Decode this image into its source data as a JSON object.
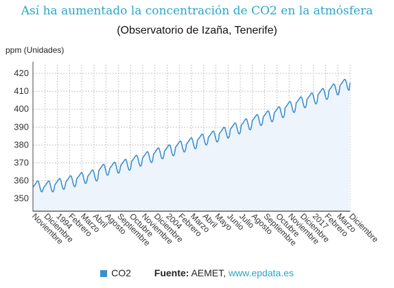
{
  "header": {
    "title": "Así ha aumentado la concentración de CO2 en la atmósfera",
    "subtitle": "(Observatorio de Izaña, Tenerife)"
  },
  "footer": {
    "source_label": "Fuente:",
    "source_name": "AEMET,",
    "source_link": "www.epdata.es"
  },
  "colors": {
    "line": "#3a8fd0",
    "fill": "#eef4fb",
    "title": "#2aa6c8",
    "grid": "#c4c4c4"
  },
  "chart_data": {
    "type": "area",
    "title": "Así ha aumentado la concentración de CO2 en la atmósfera",
    "subtitle": "(Observatorio de Izaña, Tenerife)",
    "ylabel": "ppm (Unidades)",
    "ylim": [
      343,
      425
    ],
    "yticks": [
      350,
      360,
      370,
      380,
      390,
      400,
      410,
      420
    ],
    "grid": true,
    "legend_position": "bottom",
    "x_start": "1991-11",
    "x_end": "2019-12",
    "xtick_labels": [
      "Noviembre",
      "Diciembre",
      "1994",
      "Febrero",
      "Marzo",
      "Abril",
      "Agosto",
      "Septiembre",
      "Octubre",
      "Noviembre",
      "Diciembre",
      "2004",
      "Febrero",
      "Marzo",
      "Abril",
      "Mayo",
      "Junio",
      "Julio",
      "Agosto",
      "Septiembre",
      "Octubre",
      "Noviembre",
      "Diciembre",
      "2017",
      "Febrero",
      "Marzo",
      "Diciembre"
    ],
    "series": [
      {
        "name": "CO2",
        "color": "#3a8fd0",
        "values": [
          356.4,
          357.1,
          357.7,
          358.5,
          359.3,
          359.9,
          359.6,
          357.9,
          355.6,
          354.0,
          353.8,
          355.1,
          356.4,
          357.1,
          357.7,
          358.5,
          359.3,
          359.9,
          359.6,
          357.9,
          355.6,
          354.0,
          353.8,
          355.1,
          357.8,
          358.5,
          359.1,
          359.9,
          360.7,
          361.3,
          361.0,
          359.3,
          357.0,
          355.4,
          355.2,
          356.5,
          359.3,
          360.0,
          360.6,
          361.4,
          362.2,
          362.8,
          362.5,
          360.8,
          358.5,
          356.9,
          356.7,
          358.0,
          361.1,
          361.8,
          362.4,
          363.2,
          364.0,
          364.6,
          364.3,
          362.6,
          360.3,
          358.7,
          358.5,
          359.8,
          362.5,
          363.2,
          363.8,
          364.6,
          365.4,
          366.0,
          365.7,
          364.0,
          361.7,
          360.1,
          359.9,
          361.2,
          365.7,
          366.4,
          367.0,
          367.8,
          368.6,
          369.2,
          368.9,
          367.2,
          364.9,
          363.3,
          363.1,
          364.4,
          366.9,
          367.6,
          368.2,
          369.0,
          369.8,
          370.4,
          370.1,
          368.4,
          366.1,
          364.5,
          364.3,
          365.6,
          368.5,
          369.2,
          369.8,
          370.6,
          371.4,
          372.0,
          371.7,
          370.0,
          367.7,
          366.1,
          365.9,
          367.2,
          370.8,
          371.5,
          372.1,
          372.9,
          373.7,
          374.3,
          374.0,
          372.3,
          370.0,
          368.4,
          368.2,
          369.5,
          372.8,
          373.5,
          374.1,
          374.9,
          375.7,
          376.3,
          376.0,
          374.3,
          372.0,
          370.4,
          370.2,
          371.5,
          374.9,
          375.6,
          376.2,
          377.0,
          377.8,
          378.4,
          378.1,
          376.4,
          374.1,
          372.5,
          372.3,
          373.6,
          376.6,
          377.3,
          377.9,
          378.7,
          379.5,
          380.1,
          379.8,
          378.1,
          375.8,
          374.2,
          374.0,
          375.3,
          378.7,
          379.4,
          380.0,
          380.8,
          381.6,
          382.2,
          381.9,
          380.2,
          377.9,
          376.3,
          376.1,
          377.4,
          380.5,
          381.2,
          381.8,
          382.6,
          383.4,
          384.0,
          383.7,
          382.0,
          379.7,
          378.1,
          377.9,
          379.2,
          382.6,
          383.3,
          383.9,
          384.7,
          385.5,
          386.1,
          385.8,
          384.1,
          381.8,
          380.2,
          380.0,
          381.3,
          384.3,
          385.0,
          385.6,
          386.4,
          387.2,
          387.8,
          387.5,
          385.8,
          383.5,
          381.9,
          381.7,
          383.0,
          386.4,
          387.1,
          387.7,
          388.5,
          389.3,
          389.9,
          389.6,
          387.9,
          385.6,
          384.0,
          383.8,
          385.1,
          388.8,
          389.5,
          390.1,
          390.9,
          391.7,
          392.3,
          392.0,
          390.3,
          388.0,
          386.4,
          386.2,
          387.5,
          391.1,
          391.8,
          392.4,
          393.2,
          394.0,
          394.6,
          394.3,
          392.6,
          390.3,
          388.7,
          388.5,
          389.8,
          393.5,
          394.2,
          394.8,
          395.6,
          396.4,
          397.0,
          396.7,
          395.0,
          392.7,
          391.1,
          390.9,
          392.2,
          395.6,
          396.3,
          396.9,
          397.7,
          398.5,
          399.1,
          398.8,
          397.1,
          394.8,
          393.2,
          393.0,
          394.3,
          397.9,
          398.6,
          399.2,
          400.0,
          400.8,
          401.4,
          401.1,
          399.4,
          397.1,
          395.5,
          395.3,
          396.6,
          400.8,
          401.5,
          402.1,
          402.9,
          403.7,
          404.3,
          404.0,
          402.3,
          400.0,
          398.4,
          398.2,
          399.5,
          403.4,
          404.1,
          404.7,
          405.5,
          406.3,
          406.9,
          406.6,
          404.9,
          402.6,
          401.0,
          400.8,
          402.1,
          405.6,
          406.3,
          406.9,
          407.7,
          408.5,
          409.1,
          408.8,
          407.1,
          404.8,
          403.2,
          403.0,
          404.3,
          408.1,
          408.8,
          409.4,
          410.2,
          411.0,
          411.6,
          411.3,
          409.6,
          407.3,
          405.7,
          405.5,
          406.8,
          410.6,
          411.3,
          411.9,
          412.7,
          413.5,
          414.1,
          413.8,
          412.1,
          409.8,
          408.2,
          408.0,
          409.3,
          413.2,
          413.9,
          414.5,
          415.3,
          416.1,
          416.7,
          416.4,
          414.7,
          412.4,
          410.8,
          410.6,
          414.8
        ]
      }
    ]
  }
}
